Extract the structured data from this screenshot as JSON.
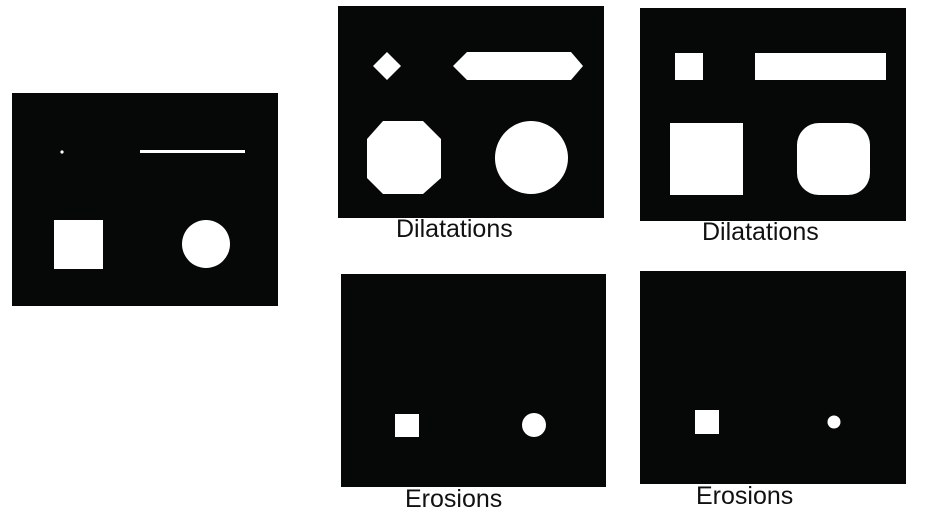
{
  "colors": {
    "background": "#060808",
    "foreground": "#ffffff",
    "page": "#ffffff"
  },
  "panels": {
    "original": {
      "caption": ""
    },
    "dilation_diamond": {
      "caption": "Dilatations"
    },
    "dilation_square": {
      "caption": "Dilatations"
    },
    "erosion_diamond": {
      "caption": "Erosions"
    },
    "erosion_square": {
      "caption": "Erosions"
    }
  }
}
